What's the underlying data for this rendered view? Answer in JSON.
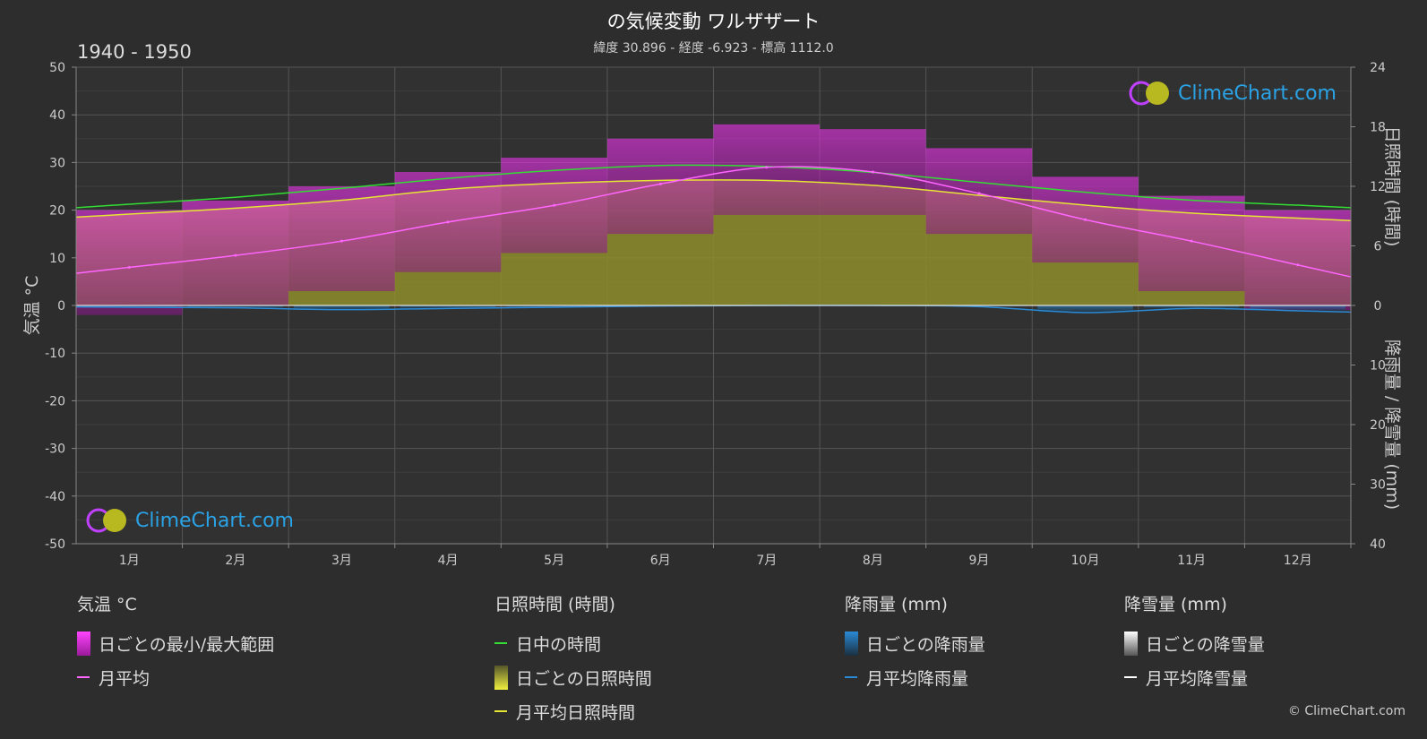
{
  "header": {
    "title": "の気候変動 ワルザザート",
    "subtitle": "緯度 30.896 - 経度 -6.923 - 標高 1112.0",
    "period": "1940 - 1950"
  },
  "axes": {
    "left_label": "気温 °C",
    "right_top_label": "日照時間 (時間)",
    "right_bottom_label": "降雨量 / 降雪量 (mm)"
  },
  "logo": {
    "text": "ClimeChart.com"
  },
  "copyright": "© ClimeChart.com",
  "colors": {
    "background": "#2d2d2d",
    "temp_range": "#e020e0",
    "temp_mean": "#ff66ff",
    "daylight": "#33dd33",
    "sunshine_fill": "#9a9a30",
    "sunshine_mean": "#e5e533",
    "rain": "#2a8ad6",
    "snow": "#ffffff"
  },
  "legend": {
    "temperature": {
      "header": "気温 °C",
      "range_label": "日ごとの最小/最大範囲",
      "mean_label": "月平均"
    },
    "sunshine": {
      "header": "日照時間 (時間)",
      "daylight_label": "日中の時間",
      "daily_label": "日ごとの日照時間",
      "mean_label": "月平均日照時間"
    },
    "rain": {
      "header": "降雨量 (mm)",
      "daily_label": "日ごとの降雨量",
      "mean_label": "月平均降雨量"
    },
    "snow": {
      "header": "降雪量 (mm)",
      "daily_label": "日ごとの降雪量",
      "mean_label": "月平均降雪量"
    }
  },
  "chart_data": {
    "type": "line",
    "categories": [
      "1月",
      "2月",
      "3月",
      "4月",
      "5月",
      "6月",
      "7月",
      "8月",
      "9月",
      "10月",
      "11月",
      "12月"
    ],
    "y_left": {
      "ticks": [
        50,
        40,
        30,
        20,
        10,
        0,
        -10,
        -20,
        -30,
        -40,
        -50
      ],
      "range": [
        -50,
        50
      ]
    },
    "y_right_top": {
      "ticks": [
        24,
        18,
        12,
        6,
        0
      ],
      "range": [
        0,
        24
      ]
    },
    "y_right_bottom": {
      "ticks": [
        0,
        10,
        20,
        30,
        40
      ],
      "range": [
        0,
        40
      ]
    },
    "grid": true,
    "series": [
      {
        "name": "月平均",
        "unit": "°C",
        "values": [
          8.0,
          10.5,
          13.5,
          17.5,
          21.0,
          25.5,
          29.0,
          28.0,
          23.5,
          18.0,
          13.5,
          8.5
        ]
      },
      {
        "name": "日ごとの最小/最大範囲",
        "unit": "°C",
        "min": [
          -2,
          0,
          3,
          7,
          11,
          15,
          19,
          19,
          15,
          9,
          3,
          -1
        ],
        "max": [
          20,
          22,
          25,
          28,
          31,
          35,
          38,
          37,
          33,
          27,
          23,
          20
        ]
      },
      {
        "name": "日中の時間",
        "unit": "時間",
        "values": [
          10.2,
          10.9,
          11.8,
          12.8,
          13.6,
          14.1,
          14.0,
          13.4,
          12.4,
          11.4,
          10.6,
          10.1
        ]
      },
      {
        "name": "月平均日照時間",
        "unit": "時間",
        "values": [
          9.2,
          9.8,
          10.6,
          11.7,
          12.3,
          12.6,
          12.6,
          12.1,
          11.1,
          10.1,
          9.3,
          8.8
        ]
      },
      {
        "name": "月平均降雨量",
        "unit": "mm",
        "values": [
          0.3,
          0.4,
          0.7,
          0.5,
          0.3,
          0.1,
          0.0,
          0.0,
          0.2,
          1.2,
          0.5,
          0.9
        ]
      },
      {
        "name": "月平均降雪量",
        "unit": "mm",
        "values": [
          0,
          0,
          0,
          0,
          0,
          0,
          0,
          0,
          0,
          0,
          0,
          0
        ]
      }
    ]
  }
}
